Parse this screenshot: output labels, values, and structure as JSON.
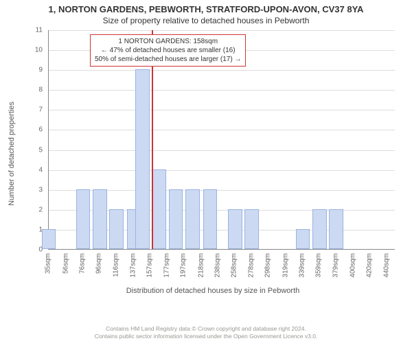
{
  "titles": {
    "line1": "1, NORTON GARDENS, PEBWORTH, STRATFORD-UPON-AVON, CV37 8YA",
    "line2": "Size of property relative to detached houses in Pebworth"
  },
  "chart": {
    "type": "histogram",
    "ylabel": "Number of detached properties",
    "xlabel": "Distribution of detached houses by size in Pebworth",
    "ylim": [
      0,
      11
    ],
    "ytick_step": 1,
    "background_color": "#ffffff",
    "grid_color": "#dddddd",
    "axis_color": "#888888",
    "bar_fill": "#ccd9f2",
    "bar_border": "#99b3e0",
    "marker_color": "#cc3333",
    "xticks": [
      "35sqm",
      "56sqm",
      "76sqm",
      "96sqm",
      "116sqm",
      "137sqm",
      "157sqm",
      "177sqm",
      "197sqm",
      "218sqm",
      "238sqm",
      "258sqm",
      "278sqm",
      "298sqm",
      "319sqm",
      "339sqm",
      "359sqm",
      "379sqm",
      "400sqm",
      "420sqm",
      "440sqm"
    ],
    "bars": [
      {
        "x": 35,
        "h": 1
      },
      {
        "x": 76,
        "h": 3
      },
      {
        "x": 96,
        "h": 3
      },
      {
        "x": 116,
        "h": 2
      },
      {
        "x": 137,
        "h": 2
      },
      {
        "x": 147,
        "h": 9
      },
      {
        "x": 167,
        "h": 4
      },
      {
        "x": 187,
        "h": 3
      },
      {
        "x": 207,
        "h": 3
      },
      {
        "x": 228,
        "h": 3
      },
      {
        "x": 258,
        "h": 2
      },
      {
        "x": 278,
        "h": 2
      },
      {
        "x": 339,
        "h": 1
      },
      {
        "x": 359,
        "h": 2
      },
      {
        "x": 379,
        "h": 2
      }
    ],
    "x_domain": [
      35,
      450
    ],
    "bar_width_units": 17,
    "marker_x": 158
  },
  "annotation": {
    "lines": [
      "1 NORTON GARDENS: 158sqm",
      "← 47% of detached houses are smaller (16)",
      "50% of semi-detached houses are larger (17) →"
    ]
  },
  "footer": {
    "line1": "Contains HM Land Registry data © Crown copyright and database right 2024.",
    "line2": "Contains public sector information licensed under the Open Government Licence v3.0."
  }
}
